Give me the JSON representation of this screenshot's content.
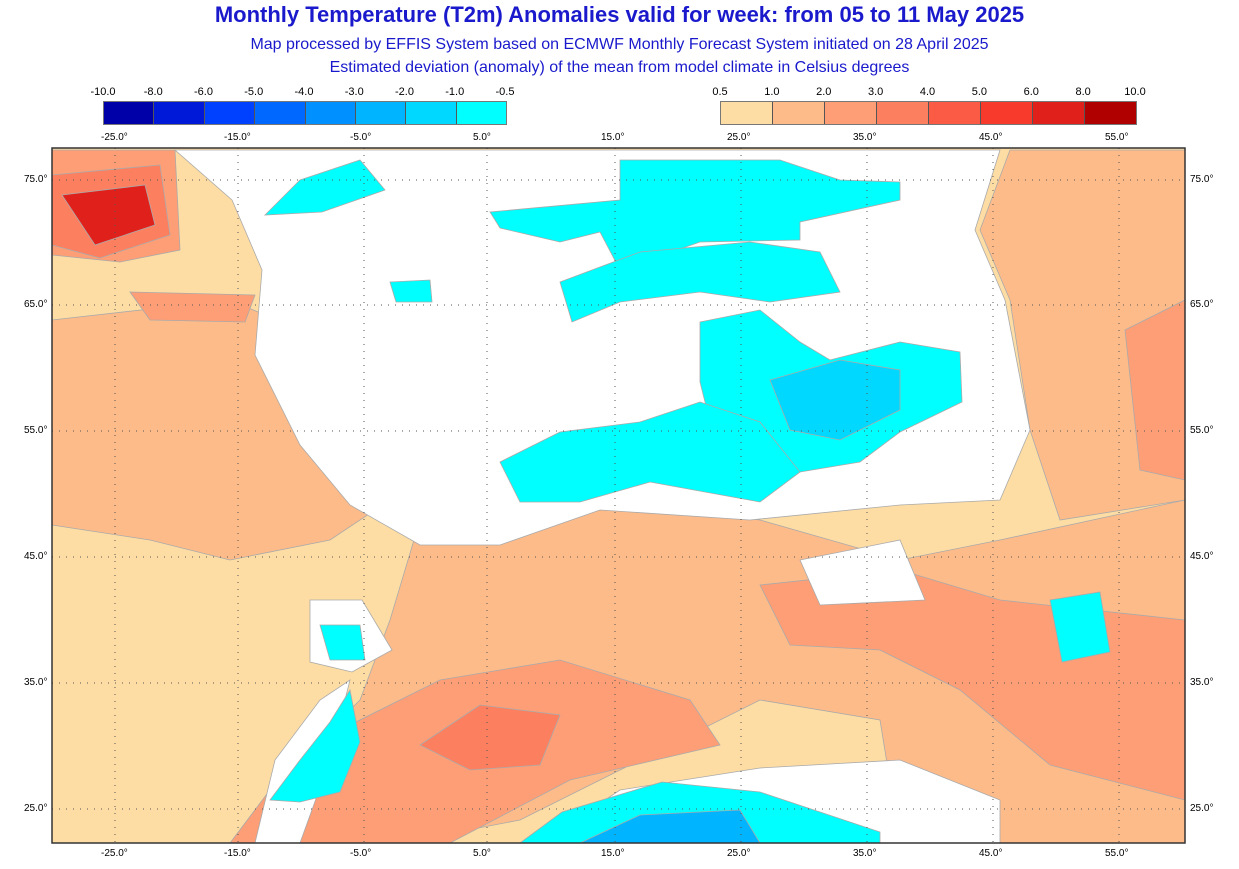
{
  "header": {
    "title": "Monthly Temperature (T2m) Anomalies valid for week: from 05 to 11 May 2025",
    "subtitle1": "Map processed by EFFIS System based on ECMWF Monthly Forecast System initiated on 28 April 2025",
    "subtitle2": "Estimated deviation (anomaly) of the mean from model climate in Celsius degrees"
  },
  "legend_cold": {
    "values": [
      "-10.0",
      "-8.0",
      "-6.0",
      "-5.0",
      "-4.0",
      "-3.0",
      "-2.0",
      "-1.0",
      "-0.5"
    ],
    "colors": [
      "#0000a8",
      "#0018d8",
      "#0040ff",
      "#0068ff",
      "#0090ff",
      "#00b4ff",
      "#00d8ff",
      "#00ffff"
    ]
  },
  "legend_warm": {
    "values": [
      "0.5",
      "1.0",
      "2.0",
      "3.0",
      "4.0",
      "5.0",
      "6.0",
      "8.0",
      "10.0"
    ],
    "colors": [
      "#fedda4",
      "#fdbb8a",
      "#fd9e76",
      "#fc7f60",
      "#fb5a45",
      "#f83a2c",
      "#e0201a",
      "#b00000"
    ]
  },
  "axes": {
    "longitude_labels": [
      "-25.0°",
      "-15.0°",
      "-5.0°",
      "5.0°",
      "15.0°",
      "25.0°",
      "35.0°",
      "45.0°",
      "55.0°"
    ],
    "latitude_labels": [
      "75.0°",
      "65.0°",
      "55.0°",
      "45.0°",
      "35.0°",
      "25.0°"
    ]
  }
}
